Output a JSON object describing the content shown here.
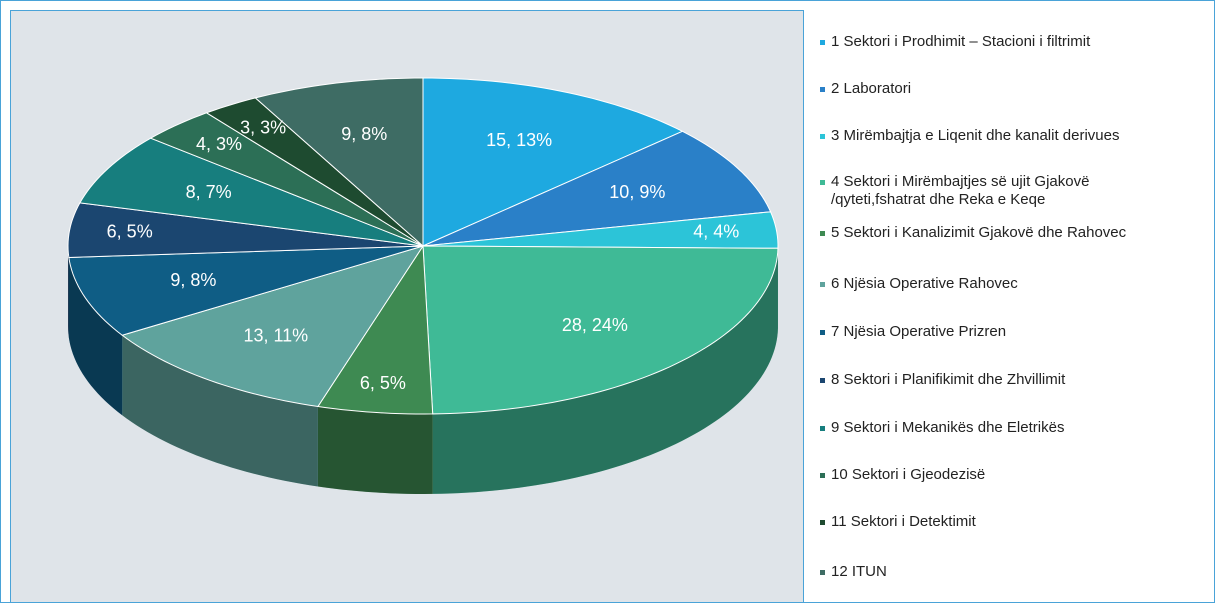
{
  "chart_data": {
    "type": "pie",
    "categories": [
      "1 Sektori i Prodhimit – Stacioni i filtrimit",
      "2 Laboratori",
      "3 Mirëmbajtja e Liqenit dhe kanalit derivues",
      "4 Sektori i Mirëmbajtjes  së ujit Gjakovë /qyteti,fshatrat dhe Reka e Keqe",
      "5 Sektori i Kanalizimit Gjakovë dhe Rahovec",
      "6 Njësia Operative Rahovec",
      "7 Njësia Operative Prizren",
      "8 Sektori i Planifikimit dhe Zhvillimit",
      "9 Sektori i Mekanikës dhe Eletrikës",
      "10 Sektori i Gjeodezisë",
      "11 Sektori i Detektimit",
      "12 ITUN"
    ],
    "values": [
      15,
      10,
      4,
      28,
      6,
      13,
      9,
      6,
      8,
      4,
      3,
      9
    ],
    "value_labels": [
      "15, 13%",
      "10, 9%",
      "4, 4%",
      "28, 24%",
      "6, 5%",
      "13, 11%",
      "9, 8%",
      "6, 5%",
      "8, 7%",
      "4, 3%",
      "3, 3%",
      "9, 8%"
    ],
    "colors": [
      "#1ea9e0",
      "#2a80c8",
      "#2cc4d8",
      "#3fba96",
      "#3e8a52",
      "#5fa39d",
      "#0f5d85",
      "#1b4670",
      "#177e7e",
      "#2c6f56",
      "#1e4b30",
      "#3e6c64"
    ],
    "legend": "right"
  }
}
